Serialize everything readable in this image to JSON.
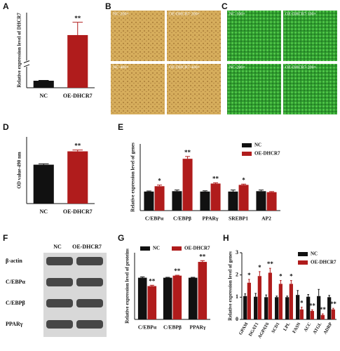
{
  "chart_data": [
    {
      "type": "bar",
      "panel": "A",
      "ylabel": "Relative expression level of DHCR7",
      "categories": [
        "NC",
        "OE-DHCR7"
      ],
      "values": [
        1.0,
        38
      ],
      "errors": [
        0.05,
        4
      ],
      "significance": [
        null,
        "**"
      ],
      "colors": [
        "#111111",
        "#b01c1c"
      ],
      "ylim": [
        0,
        45
      ],
      "axis_break": [
        3,
        30
      ]
    },
    {
      "type": "bar",
      "panel": "D",
      "ylabel": "OD value-490 nm",
      "categories": [
        "NC",
        "OE-DHCR7"
      ],
      "values": [
        0.175,
        0.235
      ],
      "errors": [
        0.004,
        0.006
      ],
      "significance": [
        null,
        "**"
      ],
      "colors": [
        "#111111",
        "#b01c1c"
      ],
      "ylim": [
        0,
        0.3
      ]
    },
    {
      "type": "grouped_bar",
      "panel": "E",
      "ylabel": "Relative expression level of genes",
      "categories": [
        "C/EBPα",
        "C/EBPβ",
        "PPARγ",
        "SREBP1",
        "AP2"
      ],
      "series": [
        {
          "name": "NC",
          "color": "#111111",
          "values": [
            1.0,
            1.02,
            1.0,
            1.0,
            1.02
          ],
          "errors": [
            0.03,
            0.06,
            0.04,
            0.08,
            0.06
          ]
        },
        {
          "name": "OE-DHCR7",
          "color": "#b01c1c",
          "values": [
            1.28,
            2.72,
            1.42,
            1.35,
            0.97
          ],
          "errors": [
            0.06,
            0.12,
            0.04,
            0.04,
            0.03
          ],
          "significance": [
            "*",
            "**",
            "**",
            "*",
            null
          ]
        }
      ],
      "ylim": [
        0,
        3.5
      ],
      "legend": "upper right"
    },
    {
      "type": "grouped_bar",
      "panel": "G",
      "ylabel": "Relative expression level of proteins",
      "categories": [
        "C/EBPα",
        "C/EBPβ",
        "PPARγ"
      ],
      "series": [
        {
          "name": "NC",
          "color": "#111111",
          "values": [
            1.0,
            1.0,
            1.0
          ],
          "errors": [
            0.02,
            0.01,
            0.01
          ]
        },
        {
          "name": "OE-DHCR7",
          "color": "#b01c1c",
          "values": [
            0.8,
            1.05,
            1.38
          ],
          "errors": [
            0.02,
            0.01,
            0.03
          ],
          "significance": [
            "**",
            "**",
            "**"
          ]
        }
      ],
      "ylim": [
        0,
        1.6
      ],
      "legend": "upper center"
    },
    {
      "type": "grouped_bar",
      "panel": "H",
      "ylabel": "Relative expression level of genes",
      "categories": [
        "GPAM",
        "DGAT1",
        "AGPAT6",
        "SCD1",
        "LPL",
        "FASN",
        "ACC",
        "ATGL",
        "ADRP"
      ],
      "series": [
        {
          "name": "NC",
          "color": "#111111",
          "values": [
            1.05,
            1.02,
            1.0,
            1.0,
            1.0,
            1.1,
            1.02,
            1.05,
            1.0
          ],
          "errors": [
            0.1,
            0.15,
            0.1,
            0.05,
            0.05,
            0.2,
            0.1,
            0.3,
            0.08
          ]
        },
        {
          "name": "OE-DHCR7",
          "color": "#b01c1c",
          "values": [
            1.65,
            1.95,
            2.1,
            1.6,
            1.6,
            0.45,
            0.38,
            0.2,
            0.45
          ],
          "errors": [
            0.15,
            0.2,
            0.2,
            0.15,
            0.15,
            0.1,
            0.05,
            0.05,
            0.05
          ],
          "significance": [
            "*",
            "*",
            "**",
            "*",
            "*",
            "*",
            "**",
            "**",
            "**"
          ]
        }
      ],
      "ylim": [
        0,
        3
      ],
      "yticks": [
        0,
        1,
        2,
        3
      ],
      "legend": "upper right",
      "rotate_labels": true
    }
  ],
  "micrographs": [
    {
      "panel": "B",
      "stain": "#d6ad5c",
      "images": [
        "NC·200×",
        "OE-DHCR7·200×",
        "NC·400×",
        "OE-DHCR7·400×"
      ]
    },
    {
      "panel": "C",
      "stain": "#2f9a2f",
      "images": [
        "NC·100×",
        "OE-DHCR7·100×",
        "NC·200×",
        "OE-DHCR7·200×"
      ]
    }
  ],
  "blot": {
    "panel": "F",
    "columns": [
      "NC",
      "OE-DHCR7"
    ],
    "rows": [
      "β-actin",
      "C/EBPα",
      "C/EBPβ",
      "PPARγ"
    ]
  }
}
